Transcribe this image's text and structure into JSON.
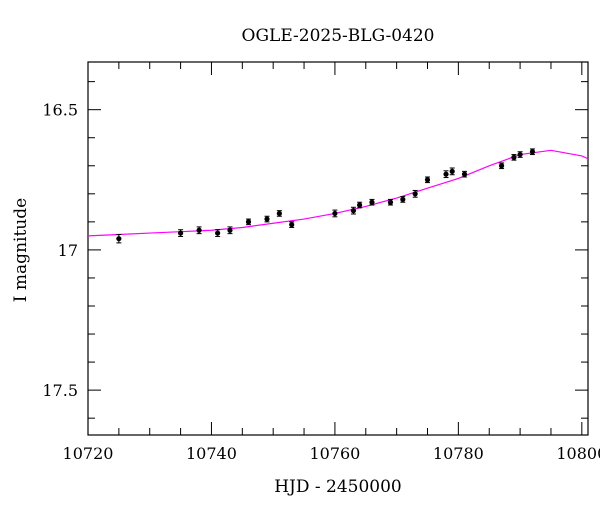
{
  "chart_data": {
    "type": "scatter",
    "title": "OGLE-2025-BLG-0420",
    "xlabel": "HJD - 2450000",
    "ylabel": "I magnitude",
    "xlim": [
      10720,
      10801
    ],
    "ylim": [
      16.33,
      17.66
    ],
    "y_inverted": true,
    "grid": false,
    "x_major_ticks": [
      10720,
      10740,
      10760,
      10780,
      10800
    ],
    "x_tick_labels": [
      "10720",
      "10740",
      "10760",
      "10780",
      "10800"
    ],
    "x_minor_ticks": [
      10725,
      10730,
      10735,
      10745,
      10750,
      10755,
      10765,
      10770,
      10775,
      10785,
      10790,
      10795
    ],
    "y_major_ticks": [
      16.5,
      17,
      17.5
    ],
    "y_tick_labels": [
      "16.5",
      "17",
      "17.5"
    ],
    "y_minor_ticks": [
      16.4,
      16.6,
      16.7,
      16.8,
      16.9,
      17.1,
      17.2,
      17.3,
      17.4,
      17.6
    ],
    "series": [
      {
        "kind": "points",
        "color": "#000000",
        "x": [
          10725.0,
          10735.0,
          10738.0,
          10741.0,
          10743.0,
          10746.0,
          10749.0,
          10751.0,
          10753.0,
          10760.0,
          10763.0,
          10764.0,
          10766.0,
          10769.0,
          10771.0,
          10773.0,
          10775.0,
          10778.0,
          10779.0,
          10781.0,
          10787.0,
          10789.0,
          10790.0,
          10792.0
        ],
        "y": [
          16.96,
          16.94,
          16.93,
          16.94,
          16.93,
          16.9,
          16.89,
          16.87,
          16.91,
          16.87,
          16.86,
          16.84,
          16.83,
          16.83,
          16.82,
          16.8,
          16.75,
          16.73,
          16.72,
          16.73,
          16.7,
          16.67,
          16.66,
          16.65
        ],
        "err": [
          0.015,
          0.012,
          0.012,
          0.012,
          0.012,
          0.01,
          0.01,
          0.01,
          0.01,
          0.012,
          0.012,
          0.01,
          0.01,
          0.01,
          0.01,
          0.012,
          0.01,
          0.012,
          0.012,
          0.01,
          0.01,
          0.01,
          0.01,
          0.01
        ]
      },
      {
        "kind": "model-curve",
        "color": "#ff00ff",
        "x": [
          10720,
          10725,
          10730,
          10735,
          10740,
          10745,
          10750,
          10755,
          10760,
          10765,
          10770,
          10775,
          10780,
          10785,
          10790,
          10795,
          10800,
          10801
        ],
        "y": [
          16.95,
          16.945,
          16.94,
          16.935,
          16.93,
          16.92,
          16.905,
          16.89,
          16.87,
          16.845,
          16.815,
          16.78,
          16.745,
          16.7,
          16.66,
          16.645,
          16.665,
          16.675
        ]
      }
    ]
  }
}
